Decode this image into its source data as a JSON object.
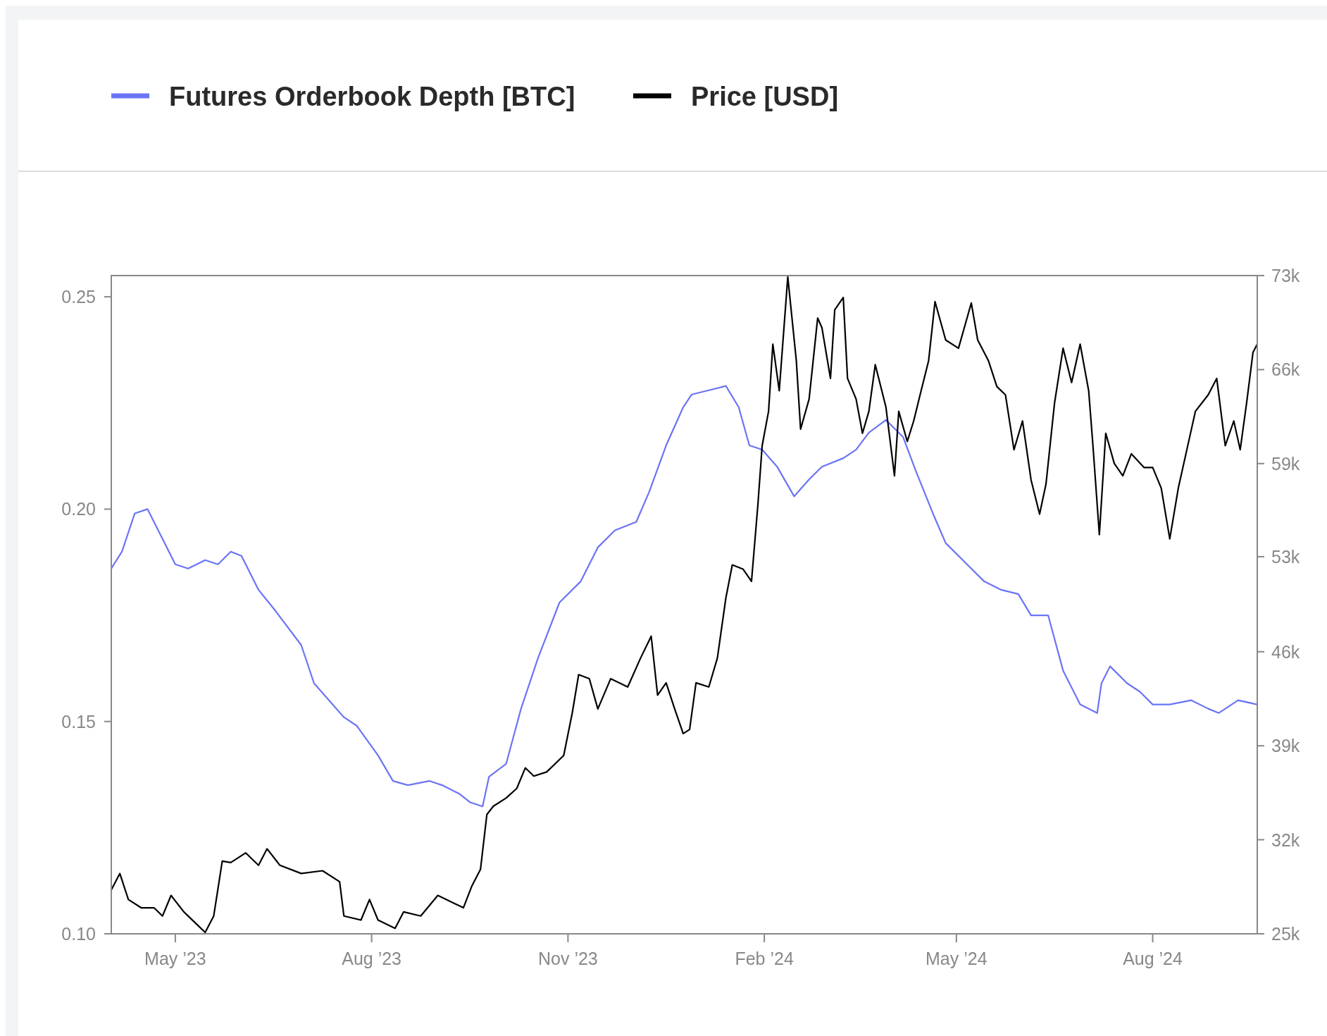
{
  "chart_data": {
    "type": "line",
    "legend": "top left",
    "line_style": "solid",
    "xlim": [
      "2023-04-01",
      "2024-09-19"
    ],
    "xticks": [
      {
        "value": "2023-05-01",
        "label": "May ’23"
      },
      {
        "value": "2023-08-01",
        "label": "Aug ’23"
      },
      {
        "value": "2023-11-01",
        "label": "Nov ’23"
      },
      {
        "value": "2024-02-01",
        "label": "Feb ’24"
      },
      {
        "value": "2024-05-01",
        "label": "May ’24"
      },
      {
        "value": "2024-08-01",
        "label": "Aug ’24"
      }
    ],
    "ylim": [
      0.1,
      0.255
    ],
    "yticks": [
      {
        "value": 0.1,
        "label": "0.10"
      },
      0.15,
      {
        "value": 0.2,
        "label": "0.20"
      },
      0.25
    ],
    "y2lim": [
      25000,
      73000
    ],
    "y2ticks": [
      {
        "value": 25000,
        "label": "25k"
      },
      {
        "value": 31860,
        "label": "32k"
      },
      {
        "value": 38710,
        "label": "39k"
      },
      {
        "value": 45570,
        "label": "46k"
      },
      {
        "value": 52500,
        "label": "53k"
      },
      {
        "value": 59290,
        "label": "59k"
      },
      {
        "value": 66140,
        "label": "66k"
      },
      {
        "value": 73000,
        "label": "73k"
      }
    ],
    "series": [
      {
        "name": "Futures Orderbook Depth [BTC]",
        "color": "#6b74f5",
        "x": [
          "2023-04-01",
          "2023-04-06",
          "2023-04-12",
          "2023-04-18",
          "2023-04-25",
          "2023-05-01",
          "2023-05-07",
          "2023-05-15",
          "2023-05-21",
          "2023-05-27",
          "2023-06-01",
          "2023-06-09",
          "2023-06-17",
          "2023-06-29",
          "2023-07-05",
          "2023-07-19",
          "2023-07-25",
          "2023-08-04",
          "2023-08-11",
          "2023-08-18",
          "2023-08-28",
          "2023-09-03",
          "2023-09-11",
          "2023-09-16",
          "2023-09-22",
          "2023-09-25",
          "2023-10-03",
          "2023-10-10",
          "2023-10-18",
          "2023-10-28",
          "2023-11-07",
          "2023-11-15",
          "2023-11-23",
          "2023-12-03",
          "2023-12-09",
          "2023-12-17",
          "2023-12-25",
          "2023-12-29",
          "2024-01-06",
          "2024-01-14",
          "2024-01-20",
          "2024-01-25",
          "2024-01-31",
          "2024-02-07",
          "2024-02-15",
          "2024-02-22",
          "2024-02-28",
          "2024-03-09",
          "2024-03-15",
          "2024-03-21",
          "2024-03-29",
          "2024-04-06",
          "2024-04-12",
          "2024-04-20",
          "2024-04-26",
          "2024-05-06",
          "2024-05-14",
          "2024-05-22",
          "2024-05-30",
          "2024-06-05",
          "2024-06-13",
          "2024-06-20",
          "2024-06-28",
          "2024-07-06",
          "2024-07-08",
          "2024-07-12",
          "2024-07-20",
          "2024-07-26",
          "2024-08-01",
          "2024-08-09",
          "2024-08-19",
          "2024-08-27",
          "2024-09-01",
          "2024-09-10",
          "2024-09-19"
        ],
        "values": [
          0.186,
          0.19,
          0.199,
          0.2,
          0.193,
          0.187,
          0.186,
          0.188,
          0.187,
          0.19,
          0.189,
          0.181,
          0.176,
          0.168,
          0.159,
          0.151,
          0.149,
          0.142,
          0.136,
          0.135,
          0.136,
          0.135,
          0.133,
          0.131,
          0.13,
          0.137,
          0.14,
          0.153,
          0.165,
          0.178,
          0.183,
          0.191,
          0.195,
          0.197,
          0.204,
          0.215,
          0.224,
          0.227,
          0.228,
          0.229,
          0.224,
          0.215,
          0.214,
          0.21,
          0.203,
          0.207,
          0.21,
          0.212,
          0.214,
          0.218,
          0.221,
          0.217,
          0.209,
          0.199,
          0.192,
          0.187,
          0.183,
          0.181,
          0.18,
          0.175,
          0.175,
          0.162,
          0.154,
          0.152,
          0.159,
          0.163,
          0.159,
          0.157,
          0.154,
          0.154,
          0.155,
          0.153,
          0.152,
          0.155,
          0.154
        ]
      },
      {
        "name": "Price [USD]",
        "color": "#000000",
        "axis": "y2",
        "x": [
          "2023-04-01",
          "2023-04-05",
          "2023-04-09",
          "2023-04-15",
          "2023-04-21",
          "2023-04-25",
          "2023-04-29",
          "2023-05-05",
          "2023-05-11",
          "2023-05-15",
          "2023-05-19",
          "2023-05-23",
          "2023-05-27",
          "2023-06-03",
          "2023-06-09",
          "2023-06-13",
          "2023-06-19",
          "2023-06-29",
          "2023-07-09",
          "2023-07-17",
          "2023-07-19",
          "2023-07-27",
          "2023-07-31",
          "2023-08-04",
          "2023-08-12",
          "2023-08-16",
          "2023-08-24",
          "2023-09-01",
          "2023-09-09",
          "2023-09-13",
          "2023-09-17",
          "2023-09-21",
          "2023-09-24",
          "2023-09-27",
          "2023-10-03",
          "2023-10-08",
          "2023-10-12",
          "2023-10-16",
          "2023-10-22",
          "2023-10-30",
          "2023-11-03",
          "2023-11-06",
          "2023-11-11",
          "2023-11-15",
          "2023-11-21",
          "2023-11-29",
          "2023-12-05",
          "2023-12-10",
          "2023-12-13",
          "2023-12-17",
          "2023-12-21",
          "2023-12-25",
          "2023-12-28",
          "2023-12-31",
          "2024-01-06",
          "2024-01-10",
          "2024-01-14",
          "2024-01-17",
          "2024-01-22",
          "2024-01-26",
          "2024-01-29",
          "2024-01-31",
          "2024-02-03",
          "2024-02-05",
          "2024-02-08",
          "2024-02-12",
          "2024-02-16",
          "2024-02-18",
          "2024-02-22",
          "2024-02-26",
          "2024-02-28",
          "2024-03-03",
          "2024-03-05",
          "2024-03-09",
          "2024-03-11",
          "2024-03-15",
          "2024-03-18",
          "2024-03-21",
          "2024-03-24",
          "2024-03-29",
          "2024-04-02",
          "2024-04-04",
          "2024-04-08",
          "2024-04-11",
          "2024-04-14",
          "2024-04-18",
          "2024-04-21",
          "2024-04-26",
          "2024-05-02",
          "2024-05-06",
          "2024-05-08",
          "2024-05-11",
          "2024-05-16",
          "2024-05-20",
          "2024-05-24",
          "2024-05-28",
          "2024-06-01",
          "2024-06-05",
          "2024-06-09",
          "2024-06-12",
          "2024-06-16",
          "2024-06-20",
          "2024-06-24",
          "2024-06-28",
          "2024-07-02",
          "2024-07-04",
          "2024-07-07",
          "2024-07-10",
          "2024-07-14",
          "2024-07-18",
          "2024-07-22",
          "2024-07-28",
          "2024-08-01",
          "2024-08-05",
          "2024-08-09",
          "2024-08-13",
          "2024-08-17",
          "2024-08-21",
          "2024-08-27",
          "2024-08-31",
          "2024-09-04",
          "2024-09-08",
          "2024-09-11",
          "2024-09-14",
          "2024-09-17",
          "2024-09-19"
        ],
        "values": [
          28200,
          29400,
          27500,
          26900,
          26900,
          26300,
          27800,
          26600,
          25700,
          25100,
          26300,
          30300,
          30200,
          30900,
          30000,
          31200,
          30000,
          29400,
          29600,
          28800,
          26300,
          26000,
          27500,
          26000,
          25400,
          26600,
          26300,
          27800,
          27200,
          26900,
          28500,
          29700,
          33700,
          34300,
          34900,
          35600,
          37100,
          36500,
          36800,
          38000,
          41100,
          43900,
          43600,
          41400,
          43600,
          43000,
          45100,
          46700,
          42400,
          43300,
          41400,
          39600,
          39900,
          43300,
          43000,
          45100,
          49500,
          51900,
          51600,
          50700,
          56300,
          60600,
          63100,
          68000,
          64600,
          72900,
          66800,
          61800,
          64000,
          69900,
          69200,
          65500,
          70500,
          71400,
          65500,
          64000,
          61500,
          63100,
          66500,
          63400,
          58400,
          63100,
          60900,
          62400,
          64300,
          66800,
          71100,
          68300,
          67700,
          69900,
          71000,
          68300,
          66800,
          64900,
          64300,
          60300,
          62400,
          58100,
          55600,
          57800,
          63700,
          67700,
          65200,
          68000,
          64600,
          60600,
          54100,
          61500,
          59300,
          58400,
          60000,
          59000,
          59000,
          57500,
          53800,
          57500,
          60300,
          63100,
          64300,
          65500,
          60600,
          62400,
          60300,
          63700,
          67400,
          68000
        ]
      }
    ]
  }
}
